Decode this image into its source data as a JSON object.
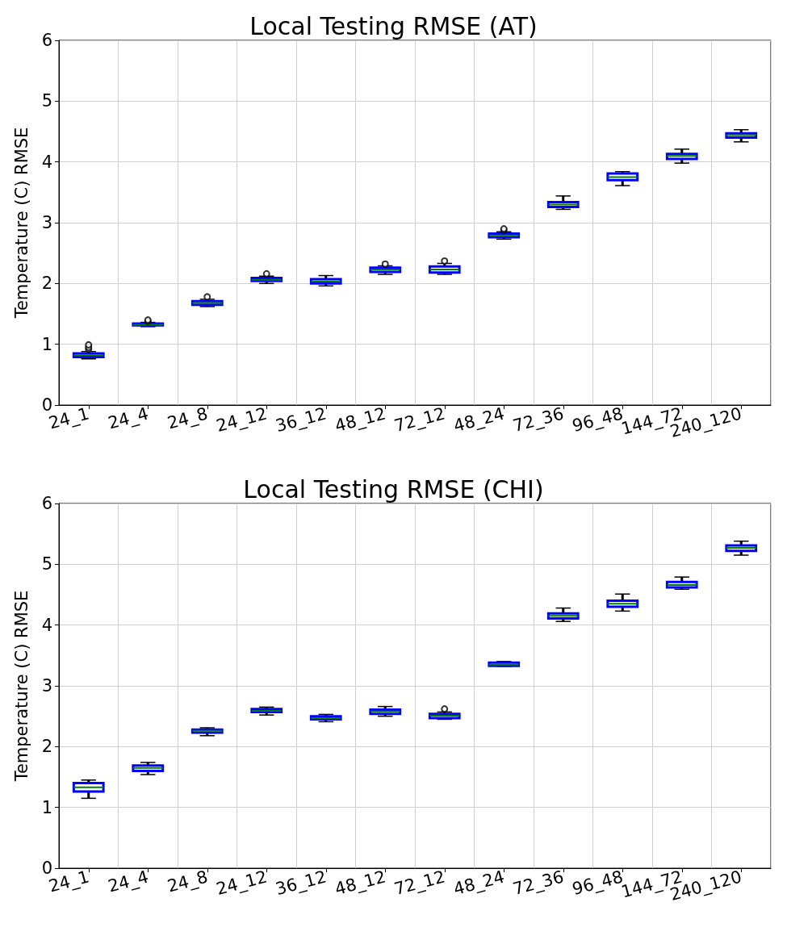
{
  "chart_data": [
    {
      "type": "box",
      "title": "Local Testing RMSE (AT)",
      "ylabel": "Temperature (C) RMSE",
      "categories": [
        "24_1",
        "24_4",
        "24_8",
        "24_12",
        "36_12",
        "48_12",
        "72_12",
        "48_24",
        "72_36",
        "96_48",
        "144_72",
        "240_120"
      ],
      "color": "#0000ff",
      "ylim": [
        0,
        6
      ],
      "yticks": [
        0,
        1,
        2,
        3,
        4,
        5,
        6
      ],
      "grid": true,
      "legend": false,
      "boxes": [
        {
          "low": 0.76,
          "q1": 0.79,
          "median": 0.82,
          "q3": 0.85,
          "high": 0.88,
          "outliers": [
            0.92,
            0.95,
            0.99
          ]
        },
        {
          "low": 1.29,
          "q1": 1.31,
          "median": 1.32,
          "q3": 1.34,
          "high": 1.36,
          "outliers": [
            1.38,
            1.4
          ]
        },
        {
          "low": 1.62,
          "q1": 1.65,
          "median": 1.68,
          "q3": 1.71,
          "high": 1.74,
          "outliers": [
            1.78
          ]
        },
        {
          "low": 2.0,
          "q1": 2.04,
          "median": 2.06,
          "q3": 2.09,
          "high": 2.12,
          "outliers": [
            2.16
          ]
        },
        {
          "low": 1.96,
          "q1": 2.0,
          "median": 2.03,
          "q3": 2.07,
          "high": 2.13
        },
        {
          "low": 2.15,
          "q1": 2.19,
          "median": 2.23,
          "q3": 2.26,
          "high": 2.29,
          "outliers": [
            2.32
          ]
        },
        {
          "low": 2.15,
          "q1": 2.18,
          "median": 2.23,
          "q3": 2.28,
          "high": 2.33,
          "outliers": [
            2.37
          ]
        },
        {
          "low": 2.73,
          "q1": 2.76,
          "median": 2.79,
          "q3": 2.82,
          "high": 2.85,
          "outliers": [
            2.88,
            2.9
          ]
        },
        {
          "low": 3.22,
          "q1": 3.26,
          "median": 3.3,
          "q3": 3.34,
          "high": 3.44
        },
        {
          "low": 3.61,
          "q1": 3.7,
          "median": 3.75,
          "q3": 3.81,
          "high": 3.84
        },
        {
          "low": 3.98,
          "q1": 4.05,
          "median": 4.1,
          "q3": 4.13,
          "high": 4.21
        },
        {
          "low": 4.33,
          "q1": 4.4,
          "median": 4.44,
          "q3": 4.47,
          "high": 4.53
        }
      ]
    },
    {
      "type": "box",
      "title": "Local Testing RMSE (CHI)",
      "ylabel": "Temperature (C) RMSE",
      "categories": [
        "24_1",
        "24_4",
        "24_8",
        "24_12",
        "36_12",
        "48_12",
        "72_12",
        "48_24",
        "72_36",
        "96_48",
        "144_72",
        "240_120"
      ],
      "color": "#0000ff",
      "ylim": [
        0,
        6
      ],
      "yticks": [
        0,
        1,
        2,
        3,
        4,
        5,
        6
      ],
      "grid": true,
      "legend": false,
      "boxes": [
        {
          "low": 1.15,
          "q1": 1.26,
          "median": 1.33,
          "q3": 1.4,
          "high": 1.45
        },
        {
          "low": 1.54,
          "q1": 1.6,
          "median": 1.65,
          "q3": 1.69,
          "high": 1.74
        },
        {
          "low": 2.18,
          "q1": 2.23,
          "median": 2.26,
          "q3": 2.28,
          "high": 2.31
        },
        {
          "low": 2.52,
          "q1": 2.57,
          "median": 2.59,
          "q3": 2.62,
          "high": 2.65
        },
        {
          "low": 2.41,
          "q1": 2.45,
          "median": 2.47,
          "q3": 2.5,
          "high": 2.53
        },
        {
          "low": 2.5,
          "q1": 2.54,
          "median": 2.58,
          "q3": 2.61,
          "high": 2.66
        },
        {
          "low": 2.45,
          "q1": 2.47,
          "median": 2.51,
          "q3": 2.54,
          "high": 2.57,
          "outliers": [
            2.62
          ]
        },
        {
          "low": 3.32,
          "q1": 3.33,
          "median": 3.35,
          "q3": 3.38,
          "high": 3.4
        },
        {
          "low": 4.06,
          "q1": 4.11,
          "median": 4.15,
          "q3": 4.19,
          "high": 4.28
        },
        {
          "low": 4.23,
          "q1": 4.3,
          "median": 4.35,
          "q3": 4.4,
          "high": 4.51
        },
        {
          "low": 4.59,
          "q1": 4.62,
          "median": 4.66,
          "q3": 4.71,
          "high": 4.79
        },
        {
          "low": 5.15,
          "q1": 5.22,
          "median": 5.27,
          "q3": 5.31,
          "high": 5.38
        }
      ]
    }
  ]
}
